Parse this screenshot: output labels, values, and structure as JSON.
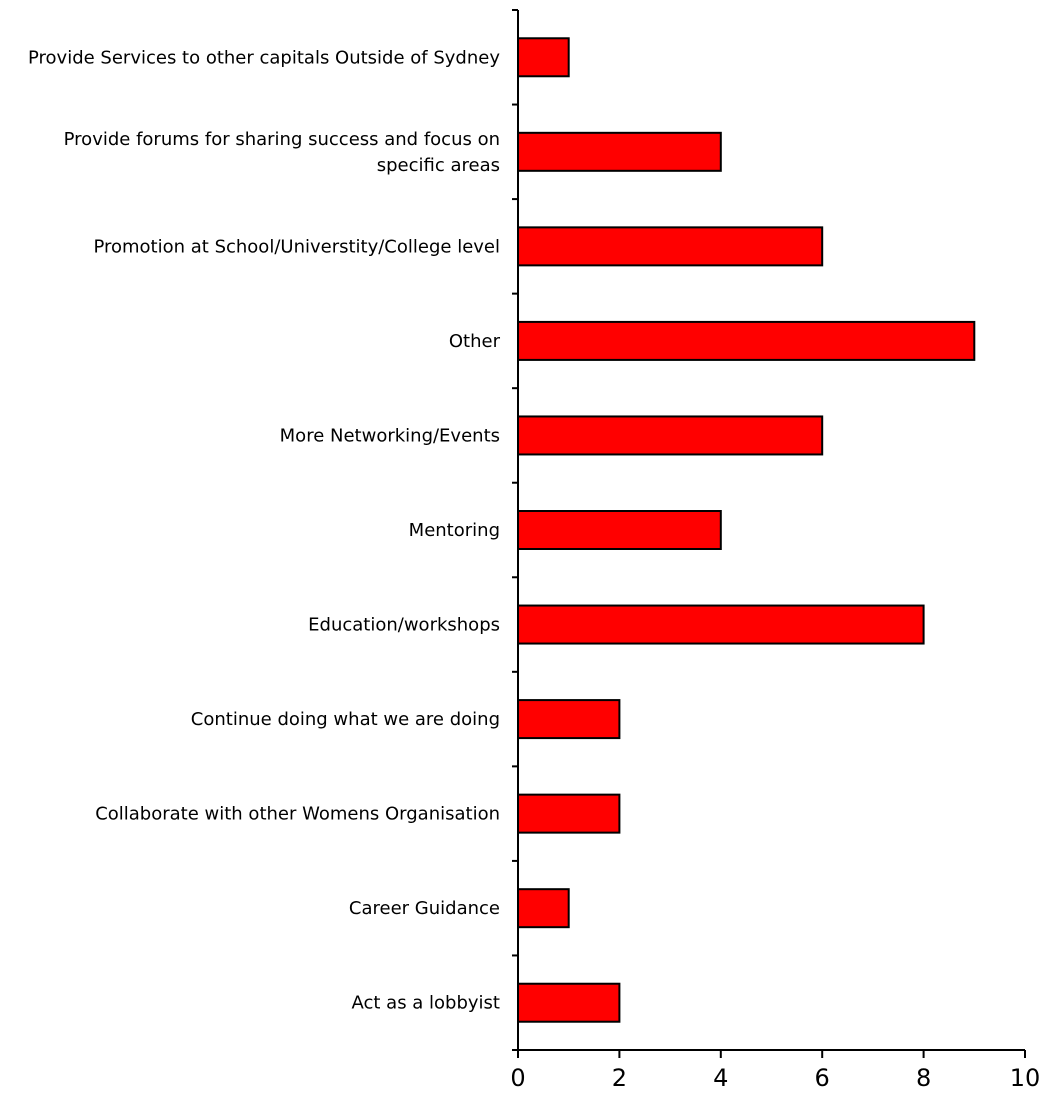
{
  "chart_data": {
    "type": "bar",
    "orientation": "horizontal",
    "categories": [
      [
        "Provide Services to other capitals Outside of Sydney"
      ],
      [
        "Provide forums for sharing success and focus on",
        "specific areas"
      ],
      [
        "Promotion at School/Universtity/College level"
      ],
      [
        "Other"
      ],
      [
        "More Networking/Events"
      ],
      [
        "Mentoring"
      ],
      [
        "Education/workshops"
      ],
      [
        "Continue doing what we are doing"
      ],
      [
        "Collaborate with other Womens Organisation"
      ],
      [
        "Career Guidance"
      ],
      [
        "Act as a lobbyist"
      ]
    ],
    "values": [
      1,
      4,
      6,
      9,
      6,
      4,
      8,
      2,
      2,
      1,
      2
    ],
    "x_ticks": [
      "0",
      "2",
      "4",
      "6",
      "8",
      "10"
    ],
    "xlim": [
      0,
      10
    ],
    "title": "",
    "xlabel": "",
    "ylabel": "",
    "bar_color": "#ff0000",
    "grid": false,
    "legend": "none"
  }
}
